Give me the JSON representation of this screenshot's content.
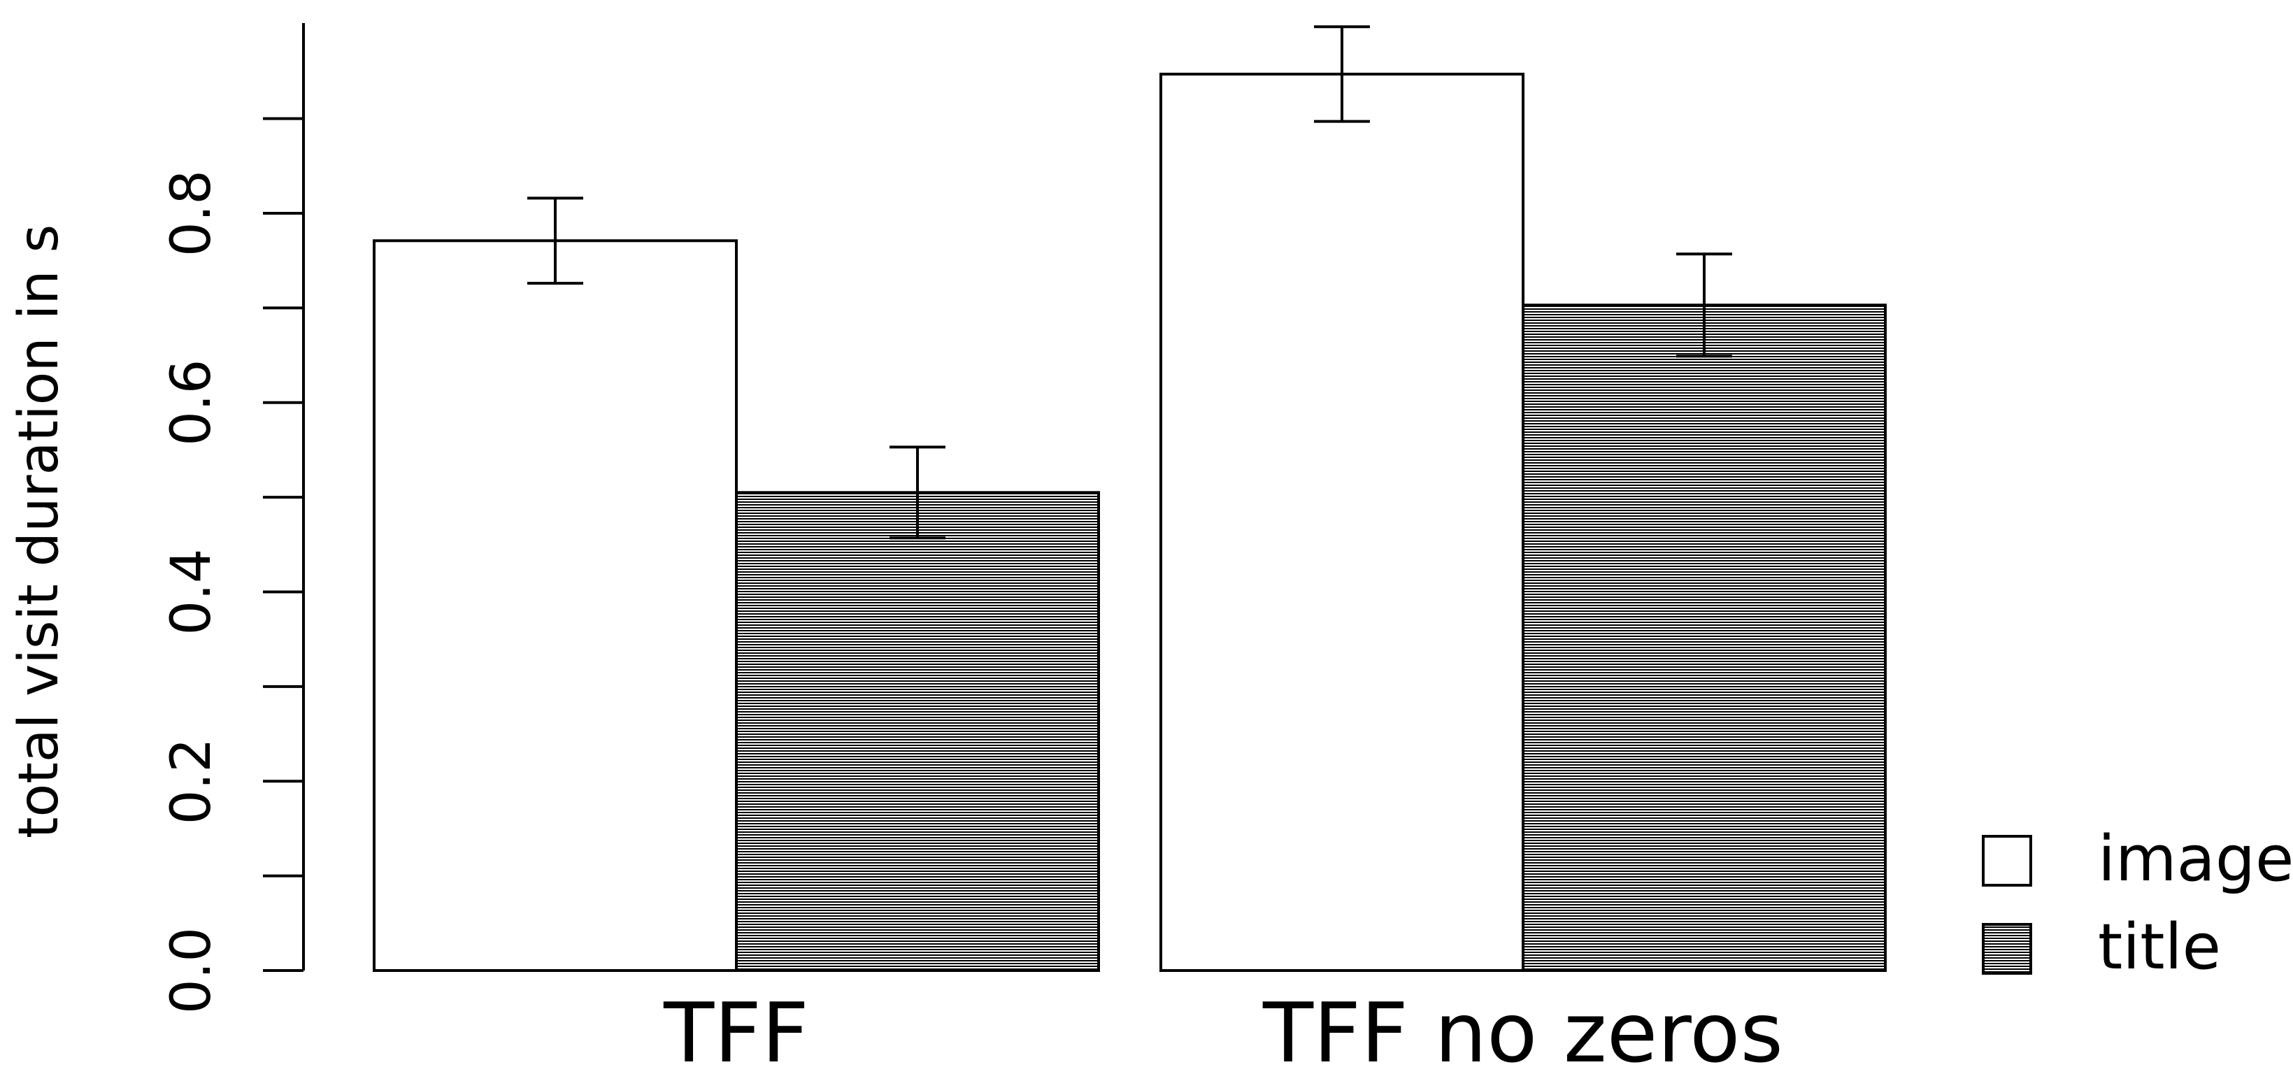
{
  "chart_data": {
    "type": "bar",
    "categories": [
      "TFF",
      "TFF no zeros"
    ],
    "series": [
      {
        "name": "image",
        "values": [
          0.771,
          0.947
        ],
        "error": [
          0.045,
          0.05
        ],
        "fill": "#ffffff"
      },
      {
        "name": "title",
        "values": [
          0.505,
          0.703
        ],
        "error": [
          0.048,
          0.054
        ],
        "fill": "hatch"
      }
    ],
    "ylabel": "total visit duration in s",
    "ylim": [
      0,
      0.95
    ],
    "yticks": [
      0.0,
      0.2,
      0.4,
      0.6,
      0.8
    ],
    "ytick_labels": [
      "0.0",
      "0.2",
      "0.4",
      "0.6",
      "0.8"
    ],
    "grid": false,
    "legend_position": "bottom-right"
  }
}
